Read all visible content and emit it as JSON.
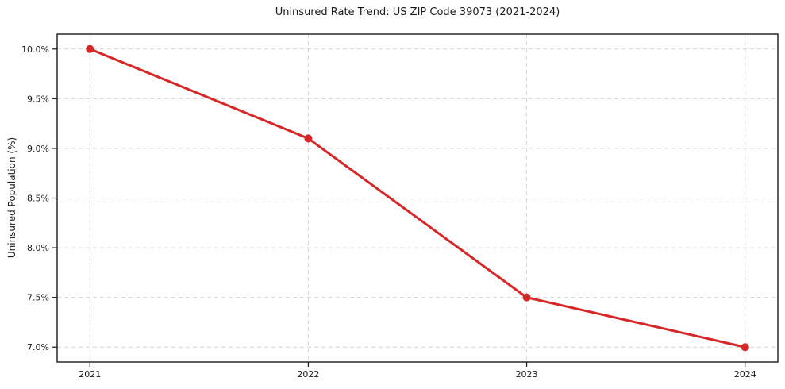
{
  "chart_data": {
    "type": "line",
    "title": "Uninsured Rate Trend: US ZIP Code 39073 (2021-2024)",
    "xlabel": "",
    "ylabel": "Uninsured Population (%)",
    "x": [
      2021,
      2022,
      2023,
      2024
    ],
    "x_tick_labels": [
      "2021",
      "2022",
      "2023",
      "2024"
    ],
    "series": [
      {
        "values": [
          10.0,
          9.1,
          7.5,
          7.0
        ],
        "color": "#d62728"
      }
    ],
    "y_ticks": [
      {
        "value": 7.0,
        "label": "7.0%"
      },
      {
        "value": 7.5,
        "label": "7.5%"
      },
      {
        "value": 8.0,
        "label": "8.0%"
      },
      {
        "value": 8.5,
        "label": "8.5%"
      },
      {
        "value": 9.0,
        "label": "9.0%"
      },
      {
        "value": 9.5,
        "label": "9.5%"
      },
      {
        "value": 10.0,
        "label": "10.0%"
      }
    ],
    "xlim": [
      2020.85,
      2024.15
    ],
    "ylim": [
      6.85,
      10.15
    ],
    "grid": true,
    "grid_style": "dashed",
    "legend": "none"
  },
  "styles": {
    "line_color": "#d62728",
    "grid_color": "#d4d4d4",
    "spine_color": "#1a1a1a",
    "text_color": "#1a1a1a",
    "background": "#ffffff",
    "line_width": 3,
    "marker_radius": 5,
    "tick_font_size": 11
  }
}
